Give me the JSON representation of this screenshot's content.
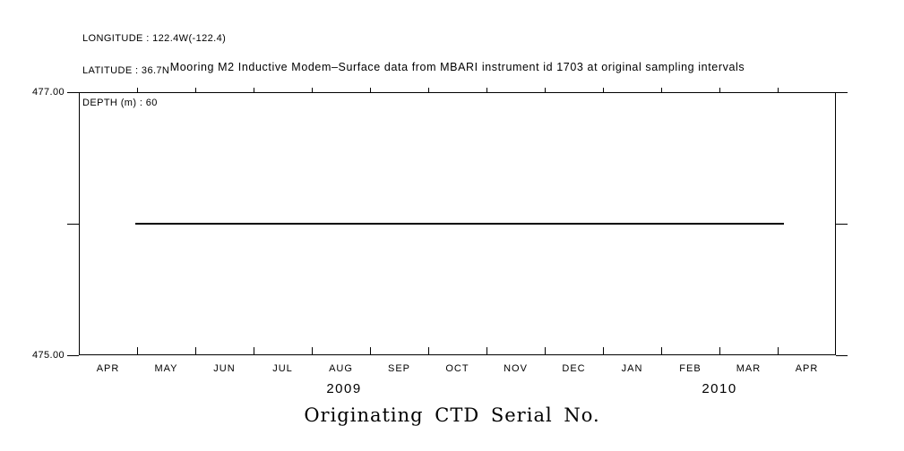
{
  "colors": {
    "background": "#ffffff",
    "ink": "#000000"
  },
  "header": {
    "lines": [
      "LONGITUDE : 122.4W(-122.4)",
      "LATITUDE : 36.7N",
      "DEPTH (m) : 60"
    ]
  },
  "chart_data": {
    "type": "line",
    "title": "Mooring M2 Inductive Modem–Surface data from MBARI instrument id 1703 at original sampling intervals",
    "bottom_label": "Originating CTD Serial No.",
    "x_tick_labels": [
      "APR",
      "MAY",
      "JUN",
      "JUL",
      "AUG",
      "SEP",
      "OCT",
      "NOV",
      "DEC",
      "JAN",
      "FEB",
      "MAR",
      "APR"
    ],
    "year_labels": [
      "2009",
      "2010"
    ],
    "y_tick_labels": [
      "477.00",
      "475.00"
    ],
    "y_ticks": [
      477.0,
      476.0,
      475.0
    ],
    "ylim": [
      475.0,
      477.0
    ],
    "x_range_months": 13,
    "grid": false,
    "legend": null,
    "series": [
      {
        "name": "Originating CTD Serial No.",
        "shape": "constant-horizontal-line",
        "value": 476.0,
        "x_start_frac": 0.075,
        "x_end_frac": 0.931,
        "start_approx": "2009-04-29",
        "end_approx": "2010-04-02"
      }
    ]
  }
}
